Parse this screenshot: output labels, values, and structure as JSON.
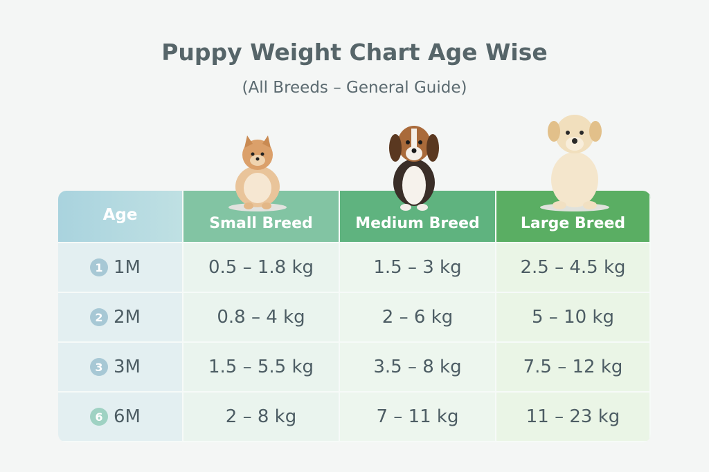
{
  "title": "Puppy Weight Chart Age Wise",
  "subtitle": "(All Breeds – General Guide)",
  "colors": {
    "age_header": "#a9d3de",
    "small_header": "#82c4a3",
    "medium_header": "#5fb37f",
    "large_header": "#5aae63",
    "text": "#4d5d64"
  },
  "icons": [
    "pomeranian-puppy-image",
    "beagle-puppy-image",
    "labrador-puppy-image"
  ],
  "chart_data": {
    "type": "table",
    "columns": [
      "Age",
      "Small Breed",
      "Medium Breed",
      "Large Breed"
    ],
    "rows": [
      {
        "badge": "1",
        "age": "1M",
        "small": "0.5 – 1.8 kg",
        "medium": "1.5 – 3 kg",
        "large": "2.5 – 4.5 kg"
      },
      {
        "badge": "2",
        "age": "2M",
        "small": "0.8 – 4 kg",
        "medium": "2 – 6 kg",
        "large": "5 – 10 kg"
      },
      {
        "badge": "3",
        "age": "3M",
        "small": "1.5 – 5.5 kg",
        "medium": "3.5 – 8 kg",
        "large": "7.5 – 12 kg"
      },
      {
        "badge": "6",
        "age": "6M",
        "small": "2 – 8 kg",
        "medium": "7 – 11 kg",
        "large": "11 – 23 kg"
      }
    ]
  }
}
